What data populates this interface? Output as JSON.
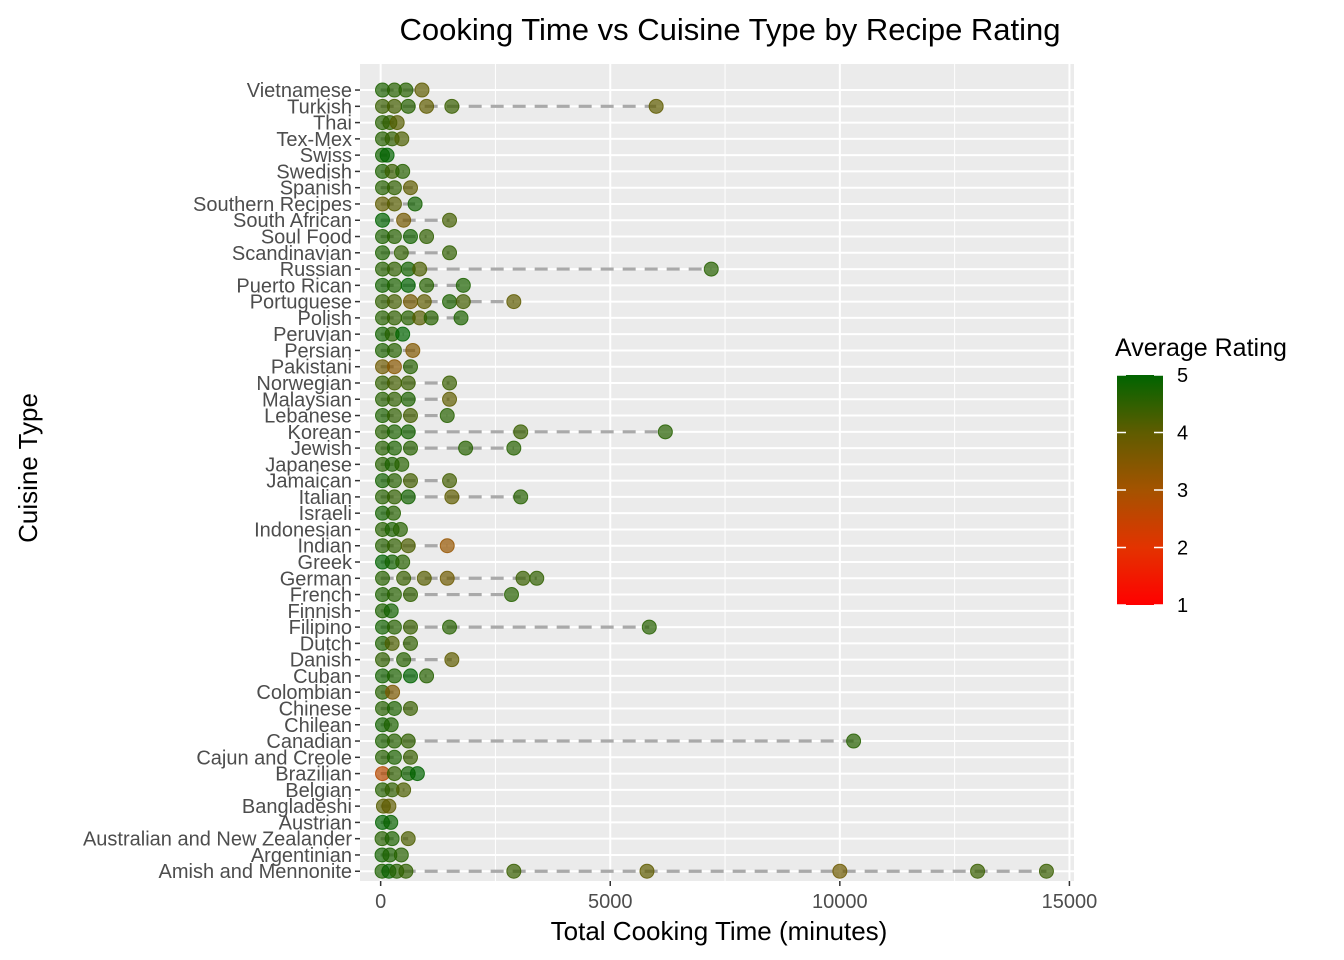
{
  "chart_data": {
    "type": "scatter",
    "title": "Cooking Time vs Cuisine Type by Recipe Rating",
    "xlabel": "Total Cooking Time (minutes)",
    "ylabel": "Cuisine Type",
    "xlim": [
      -450,
      15100
    ],
    "x_ticks": [
      0,
      5000,
      10000,
      15000
    ],
    "x_tick_labels": [
      "0",
      "5000",
      "10000",
      "15000"
    ],
    "grid": true,
    "legend": {
      "title": "Average Rating",
      "position": "right",
      "scale": "continuous",
      "min": 1,
      "max": 5,
      "ticks": [
        "1",
        "2",
        "3",
        "4",
        "5"
      ],
      "low_color": "#ff0000",
      "high_color": "#006400"
    },
    "categories": [
      "Amish and Mennonite",
      "Argentinian",
      "Australian and New Zealander",
      "Austrian",
      "Bangladeshi",
      "Belgian",
      "Brazilian",
      "Cajun and Creole",
      "Canadian",
      "Chilean",
      "Chinese",
      "Colombian",
      "Cuban",
      "Danish",
      "Dutch",
      "Filipino",
      "Finnish",
      "French",
      "German",
      "Greek",
      "Indian",
      "Indonesian",
      "Israeli",
      "Italian",
      "Jamaican",
      "Japanese",
      "Jewish",
      "Korean",
      "Lebanese",
      "Malaysian",
      "Norwegian",
      "Pakistani",
      "Persian",
      "Peruvian",
      "Polish",
      "Portuguese",
      "Puerto Rican",
      "Russian",
      "Scandinavian",
      "Soul Food",
      "South African",
      "Southern Recipes",
      "Spanish",
      "Swedish",
      "Swiss",
      "Tex-Mex",
      "Thai",
      "Turkish",
      "Vietnamese"
    ],
    "series": [
      {
        "category": "Amish and Mennonite",
        "range": [
          0,
          14500
        ],
        "points": [
          [
            30,
            4.7
          ],
          [
            180,
            4.9
          ],
          [
            350,
            4.6
          ],
          [
            550,
            4.5
          ],
          [
            2900,
            4.4
          ],
          [
            5800,
            4.0
          ],
          [
            10000,
            3.8
          ],
          [
            13000,
            4.4
          ],
          [
            14500,
            4.4
          ]
        ]
      },
      {
        "category": "Argentinian",
        "range": [
          0,
          480
        ],
        "points": [
          [
            30,
            4.8
          ],
          [
            200,
            4.7
          ],
          [
            450,
            4.6
          ]
        ]
      },
      {
        "category": "Australian and New Zealander",
        "range": [
          0,
          600
        ],
        "points": [
          [
            30,
            4.6
          ],
          [
            250,
            4.7
          ],
          [
            600,
            4.2
          ]
        ]
      },
      {
        "category": "Austrian",
        "range": [
          0,
          240
        ],
        "points": [
          [
            40,
            5.0
          ],
          [
            220,
            4.9
          ]
        ]
      },
      {
        "category": "Bangladeshi",
        "range": [
          0,
          200
        ],
        "points": [
          [
            60,
            4.1
          ],
          [
            180,
            4.0
          ]
        ]
      },
      {
        "category": "Belgian",
        "range": [
          0,
          520
        ],
        "points": [
          [
            40,
            4.6
          ],
          [
            250,
            4.5
          ],
          [
            500,
            4.2
          ]
        ]
      },
      {
        "category": "Brazilian",
        "range": [
          0,
          820
        ],
        "points": [
          [
            40,
            2.7
          ],
          [
            300,
            4.5
          ],
          [
            600,
            4.8
          ],
          [
            800,
            5.0
          ]
        ]
      },
      {
        "category": "Cajun and Creole",
        "range": [
          0,
          700
        ],
        "points": [
          [
            40,
            4.6
          ],
          [
            300,
            4.7
          ],
          [
            650,
            4.4
          ]
        ]
      },
      {
        "category": "Canadian",
        "range": [
          0,
          10300
        ],
        "points": [
          [
            40,
            4.7
          ],
          [
            300,
            4.6
          ],
          [
            600,
            4.5
          ],
          [
            10300,
            4.6
          ]
        ]
      },
      {
        "category": "Chilean",
        "range": [
          0,
          250
        ],
        "points": [
          [
            40,
            4.8
          ],
          [
            230,
            4.7
          ]
        ]
      },
      {
        "category": "Chinese",
        "range": [
          0,
          700
        ],
        "points": [
          [
            40,
            4.6
          ],
          [
            300,
            4.7
          ],
          [
            650,
            4.4
          ]
        ]
      },
      {
        "category": "Colombian",
        "range": [
          0,
          280
        ],
        "points": [
          [
            40,
            4.6
          ],
          [
            260,
            3.6
          ]
        ]
      },
      {
        "category": "Cuban",
        "range": [
          0,
          1000
        ],
        "points": [
          [
            40,
            4.8
          ],
          [
            300,
            4.7
          ],
          [
            650,
            5.0
          ],
          [
            1000,
            4.6
          ]
        ]
      },
      {
        "category": "Danish",
        "range": [
          0,
          1550
        ],
        "points": [
          [
            40,
            4.5
          ],
          [
            500,
            4.6
          ],
          [
            1550,
            4.0
          ]
        ]
      },
      {
        "category": "Dutch",
        "range": [
          0,
          650
        ],
        "points": [
          [
            40,
            4.7
          ],
          [
            250,
            4.2
          ],
          [
            650,
            4.5
          ]
        ]
      },
      {
        "category": "Filipino",
        "range": [
          0,
          5850
        ],
        "points": [
          [
            40,
            4.8
          ],
          [
            300,
            4.6
          ],
          [
            650,
            4.4
          ],
          [
            1500,
            4.6
          ],
          [
            5850,
            4.6
          ]
        ]
      },
      {
        "category": "Finnish",
        "range": [
          0,
          250
        ],
        "points": [
          [
            40,
            4.7
          ],
          [
            230,
            4.8
          ]
        ]
      },
      {
        "category": "French",
        "range": [
          0,
          2850
        ],
        "points": [
          [
            40,
            4.7
          ],
          [
            300,
            4.6
          ],
          [
            650,
            4.5
          ],
          [
            2850,
            4.6
          ]
        ]
      },
      {
        "category": "German",
        "range": [
          0,
          3400
        ],
        "points": [
          [
            40,
            4.6
          ],
          [
            500,
            4.4
          ],
          [
            950,
            4.1
          ],
          [
            1450,
            3.8
          ],
          [
            3100,
            4.4
          ],
          [
            3400,
            4.5
          ]
        ]
      },
      {
        "category": "Greek",
        "range": [
          0,
          500
        ],
        "points": [
          [
            40,
            5.0
          ],
          [
            250,
            4.8
          ],
          [
            480,
            4.6
          ]
        ]
      },
      {
        "category": "Indian",
        "range": [
          0,
          1450
        ],
        "points": [
          [
            40,
            4.6
          ],
          [
            300,
            4.5
          ],
          [
            600,
            4.2
          ],
          [
            1450,
            3.2
          ]
        ]
      },
      {
        "category": "Indonesian",
        "range": [
          0,
          450
        ],
        "points": [
          [
            40,
            4.6
          ],
          [
            250,
            4.7
          ],
          [
            430,
            4.6
          ]
        ]
      },
      {
        "category": "Israeli",
        "range": [
          0,
          300
        ],
        "points": [
          [
            40,
            4.8
          ],
          [
            280,
            4.6
          ]
        ]
      },
      {
        "category": "Italian",
        "range": [
          0,
          3050
        ],
        "points": [
          [
            40,
            4.6
          ],
          [
            300,
            4.5
          ],
          [
            600,
            4.8
          ],
          [
            1550,
            4.0
          ],
          [
            3050,
            4.6
          ]
        ]
      },
      {
        "category": "Jamaican",
        "range": [
          0,
          1500
        ],
        "points": [
          [
            40,
            4.8
          ],
          [
            300,
            4.6
          ],
          [
            650,
            4.3
          ],
          [
            1500,
            4.3
          ]
        ]
      },
      {
        "category": "Japanese",
        "range": [
          0,
          480
        ],
        "points": [
          [
            40,
            4.6
          ],
          [
            250,
            4.7
          ],
          [
            460,
            4.6
          ]
        ]
      },
      {
        "category": "Jewish",
        "range": [
          0,
          2900
        ],
        "points": [
          [
            40,
            4.6
          ],
          [
            300,
            4.7
          ],
          [
            650,
            4.6
          ],
          [
            1850,
            4.6
          ],
          [
            2900,
            4.6
          ]
        ]
      },
      {
        "category": "Korean",
        "range": [
          0,
          6200
        ],
        "points": [
          [
            40,
            4.6
          ],
          [
            300,
            4.7
          ],
          [
            600,
            4.8
          ],
          [
            3050,
            4.4
          ],
          [
            6200,
            4.6
          ]
        ]
      },
      {
        "category": "Lebanese",
        "range": [
          0,
          1450
        ],
        "points": [
          [
            40,
            4.7
          ],
          [
            300,
            4.5
          ],
          [
            650,
            4.3
          ],
          [
            1450,
            4.6
          ]
        ]
      },
      {
        "category": "Malaysian",
        "range": [
          0,
          1500
        ],
        "points": [
          [
            40,
            4.6
          ],
          [
            300,
            4.5
          ],
          [
            600,
            4.7
          ],
          [
            1500,
            4.0
          ]
        ]
      },
      {
        "category": "Norwegian",
        "range": [
          0,
          1500
        ],
        "points": [
          [
            40,
            4.5
          ],
          [
            300,
            4.3
          ],
          [
            600,
            4.4
          ],
          [
            1500,
            4.4
          ]
        ]
      },
      {
        "category": "Pakistani",
        "range": [
          0,
          700
        ],
        "points": [
          [
            40,
            3.8
          ],
          [
            300,
            3.4
          ],
          [
            650,
            4.6
          ]
        ]
      },
      {
        "category": "Persian",
        "range": [
          0,
          750
        ],
        "points": [
          [
            40,
            4.7
          ],
          [
            300,
            4.6
          ],
          [
            700,
            3.5
          ]
        ]
      },
      {
        "category": "Peruvian",
        "range": [
          0,
          500
        ],
        "points": [
          [
            40,
            4.8
          ],
          [
            250,
            4.6
          ],
          [
            480,
            5.0
          ]
        ]
      },
      {
        "category": "Polish",
        "range": [
          0,
          1750
        ],
        "points": [
          [
            40,
            4.6
          ],
          [
            300,
            4.5
          ],
          [
            600,
            4.6
          ],
          [
            850,
            4.1
          ],
          [
            1100,
            4.6
          ],
          [
            1750,
            4.7
          ]
        ]
      },
      {
        "category": "Portuguese",
        "range": [
          0,
          2900
        ],
        "points": [
          [
            40,
            4.5
          ],
          [
            300,
            4.3
          ],
          [
            650,
            3.7
          ],
          [
            950,
            4.0
          ],
          [
            1500,
            4.7
          ],
          [
            1800,
            4.3
          ],
          [
            2900,
            4.0
          ]
        ]
      },
      {
        "category": "Puerto Rican",
        "range": [
          0,
          1800
        ],
        "points": [
          [
            40,
            4.8
          ],
          [
            300,
            4.7
          ],
          [
            600,
            5.0
          ],
          [
            1000,
            4.6
          ],
          [
            1800,
            4.7
          ]
        ]
      },
      {
        "category": "Russian",
        "range": [
          0,
          7200
        ],
        "points": [
          [
            40,
            4.6
          ],
          [
            300,
            4.5
          ],
          [
            600,
            4.8
          ],
          [
            850,
            4.2
          ],
          [
            7200,
            4.6
          ]
        ]
      },
      {
        "category": "Scandinavian",
        "range": [
          0,
          1500
        ],
        "points": [
          [
            40,
            4.7
          ],
          [
            450,
            4.5
          ],
          [
            1500,
            4.5
          ]
        ]
      },
      {
        "category": "Soul Food",
        "range": [
          0,
          1000
        ],
        "points": [
          [
            40,
            4.7
          ],
          [
            300,
            4.6
          ],
          [
            650,
            4.8
          ],
          [
            1000,
            4.5
          ]
        ]
      },
      {
        "category": "South African",
        "range": [
          0,
          1500
        ],
        "points": [
          [
            40,
            5.0
          ],
          [
            500,
            3.7
          ],
          [
            1500,
            4.3
          ]
        ]
      },
      {
        "category": "Southern Recipes",
        "range": [
          0,
          750
        ],
        "points": [
          [
            40,
            4.0
          ],
          [
            300,
            4.1
          ],
          [
            750,
            4.8
          ]
        ]
      },
      {
        "category": "Spanish",
        "range": [
          0,
          700
        ],
        "points": [
          [
            40,
            4.6
          ],
          [
            300,
            4.5
          ],
          [
            650,
            4.0
          ]
        ]
      },
      {
        "category": "Swedish",
        "range": [
          0,
          500
        ],
        "points": [
          [
            40,
            4.7
          ],
          [
            250,
            4.4
          ],
          [
            480,
            4.6
          ]
        ]
      },
      {
        "category": "Swiss",
        "range": [
          0,
          150
        ],
        "points": [
          [
            40,
            4.8
          ],
          [
            140,
            5.0
          ]
        ]
      },
      {
        "category": "Tex-Mex",
        "range": [
          0,
          480
        ],
        "points": [
          [
            40,
            4.6
          ],
          [
            250,
            4.5
          ],
          [
            460,
            4.2
          ]
        ]
      },
      {
        "category": "Thai",
        "range": [
          0,
          380
        ],
        "points": [
          [
            40,
            4.6
          ],
          [
            200,
            4.5
          ],
          [
            360,
            4.1
          ]
        ]
      },
      {
        "category": "Turkish",
        "range": [
          0,
          6000
        ],
        "points": [
          [
            40,
            4.4
          ],
          [
            300,
            4.3
          ],
          [
            600,
            4.6
          ],
          [
            1000,
            4.0
          ],
          [
            1550,
            4.4
          ],
          [
            6000,
            4.0
          ]
        ]
      },
      {
        "category": "Vietnamese",
        "range": [
          0,
          900
        ],
        "points": [
          [
            40,
            4.7
          ],
          [
            300,
            4.6
          ],
          [
            550,
            4.6
          ],
          [
            900,
            4.0
          ]
        ]
      }
    ]
  }
}
